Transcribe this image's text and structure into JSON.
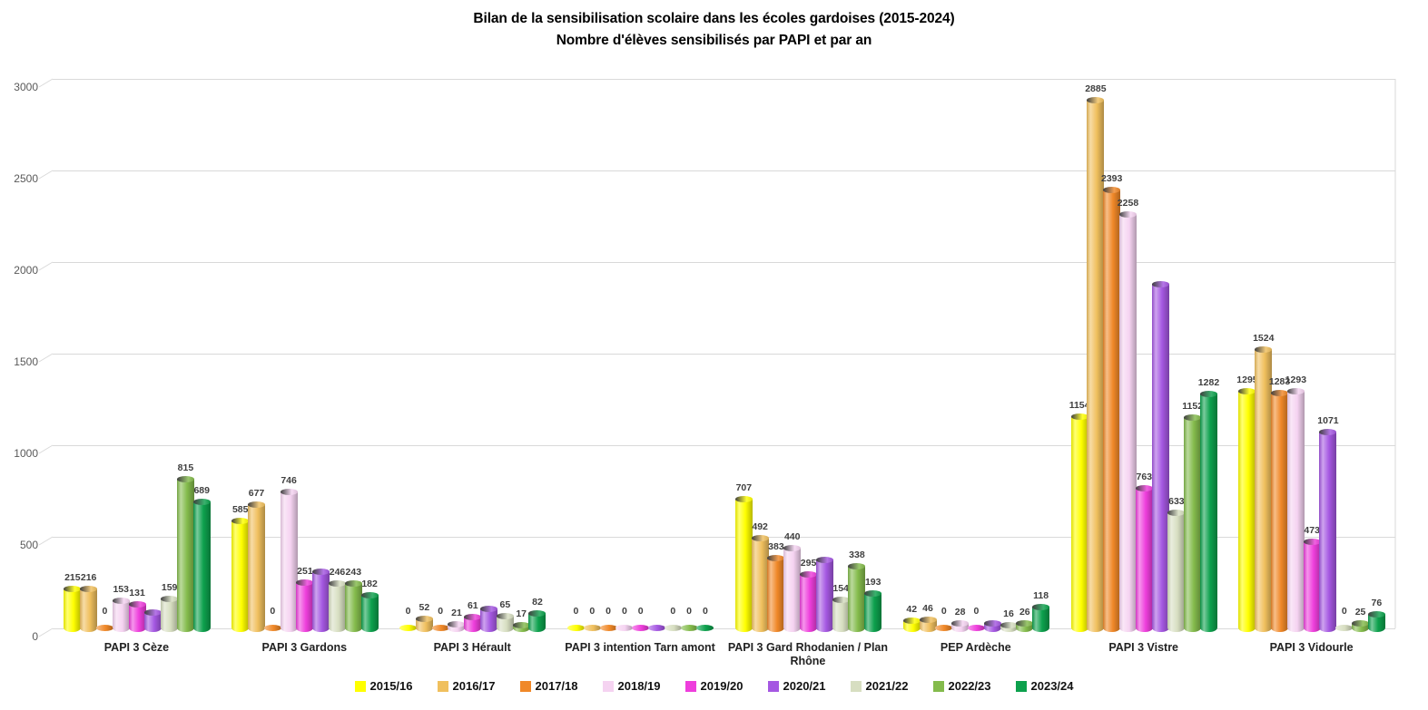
{
  "title": {
    "line1": "Bilan de la sensibilisation scolaire dans les écoles gardoises (2015-2024)",
    "line2": "Nombre d'élèves sensibilisés par PAPI et par an"
  },
  "chart_data": {
    "type": "bar",
    "style": "3d-cylinder",
    "title": "Bilan de la sensibilisation scolaire dans les écoles gardoises (2015-2024) — Nombre d'élèves sensibilisés par PAPI et par an",
    "xlabel": "",
    "ylabel": "",
    "ylim": [
      0,
      3000
    ],
    "yticks": [
      0,
      500,
      1000,
      1500,
      2000,
      2500,
      3000
    ],
    "grid": true,
    "legend_position": "bottom",
    "categories": [
      "PAPI 3 Cèze",
      "PAPI 3 Gardons",
      "PAPI 3 Hérault",
      "PAPI 3 intention Tarn amont",
      "PAPI 3 Gard Rhodanien / Plan Rhône",
      "PEP Ardèche",
      "PAPI 3 Vistre",
      "PAPI 3 Vidourle"
    ],
    "series": [
      {
        "name": "2015/16",
        "color": "#ffff00",
        "values": [
          215,
          585,
          0,
          0,
          707,
          42,
          1154,
          1295
        ],
        "labels": [
          "215",
          "585",
          "0",
          "0",
          "707",
          "42",
          "1154",
          "1295"
        ]
      },
      {
        "name": "2016/17",
        "color": "#f0c05e",
        "values": [
          216,
          677,
          52,
          0,
          492,
          46,
          2885,
          1524
        ],
        "labels": [
          "216",
          "677",
          "52",
          "0",
          "492",
          "46",
          "2885",
          "1524"
        ]
      },
      {
        "name": "2017/18",
        "color": "#f08828",
        "values": [
          0,
          0,
          0,
          0,
          383,
          0,
          2393,
          1283
        ],
        "labels": [
          "0",
          "0",
          "0",
          "0",
          "383",
          "0",
          "2393",
          "1283"
        ]
      },
      {
        "name": "2018/19",
        "color": "#f5d3f1",
        "values": [
          153,
          746,
          21,
          0,
          440,
          28,
          2258,
          1293
        ],
        "labels": [
          "153",
          "746",
          "21",
          "0",
          "440",
          "28",
          "2258",
          "1293"
        ]
      },
      {
        "name": "2019/20",
        "color": "#ee3edc",
        "values": [
          131,
          251,
          61,
          0,
          295,
          0,
          763,
          473
        ],
        "labels": [
          "131",
          "251",
          "61",
          "0",
          "295",
          "0",
          "763",
          "473"
        ]
      },
      {
        "name": "2020/21",
        "color": "#a558e2",
        "values": [
          85,
          310,
          105,
          0,
          375,
          25,
          1880,
          1071
        ],
        "labels": [
          null,
          null,
          null,
          null,
          null,
          null,
          null,
          "1071"
        ]
      },
      {
        "name": "2021/22",
        "color": "#d7dec1",
        "values": [
          159,
          246,
          65,
          0,
          154,
          16,
          633,
          0
        ],
        "labels": [
          "159",
          "246",
          "65",
          "0",
          "154",
          "16",
          "633",
          "0"
        ]
      },
      {
        "name": "2022/23",
        "color": "#84bb4c",
        "values": [
          815,
          243,
          17,
          0,
          338,
          26,
          1152,
          25
        ],
        "labels": [
          "815",
          "243",
          "17",
          "0",
          "338",
          "26",
          "1152",
          "25"
        ]
      },
      {
        "name": "2023/24",
        "color": "#0da14d",
        "values": [
          689,
          182,
          82,
          0,
          193,
          118,
          1282,
          76
        ],
        "labels": [
          "689",
          "182",
          "82",
          "0",
          "193",
          "118",
          "1282",
          "76"
        ]
      }
    ]
  },
  "colors": {
    "background": "#ffffff",
    "gridline": "#d9d9d9",
    "ytick_text": "#595959",
    "bar_label_text": "#3f3f3f",
    "category_text": "#222222",
    "title_text": "#000000"
  }
}
